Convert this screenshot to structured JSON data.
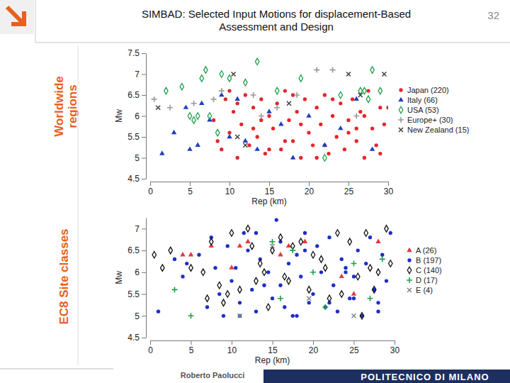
{
  "slide": {
    "title": [
      "SIMBAD: Selected Input Motions for displacement-Based",
      "Assessment and Design"
    ],
    "page_number": 32,
    "side_labels": [
      [
        "Worldwide",
        "regions"
      ],
      [
        "EC8 Site classes"
      ]
    ],
    "author": "Roberto Paolucci",
    "institution": "POLITECNICO DI MILANO"
  },
  "chart_data": [
    {
      "type": "scatter",
      "xlabel": "Rep (km)",
      "ylabel": "Mw",
      "xlim": [
        0,
        30
      ],
      "xticks": [
        0,
        5,
        10,
        15,
        20,
        25,
        30
      ],
      "ylim": [
        4.5,
        7.5
      ],
      "yticks": [
        4.5,
        5,
        5.5,
        6,
        6.5,
        7,
        7.5
      ],
      "grid": false,
      "legend": "right",
      "series": [
        {
          "name": "Japan (220)",
          "color": "#e3262d",
          "marker": "circle",
          "x": [
            8,
            9,
            9.5,
            10,
            10.5,
            11,
            11.5,
            12,
            12.5,
            13,
            13.5,
            14,
            14.5,
            15,
            15.5,
            16,
            16.5,
            17,
            17.5,
            18,
            18.5,
            19,
            19.5,
            20,
            20.5,
            21,
            21.5,
            22,
            22.5,
            23,
            23.5,
            24,
            24.5,
            25,
            25.5,
            26,
            26.5,
            27,
            27.5,
            28,
            28.5,
            29,
            29.5,
            8.5,
            11,
            13,
            15,
            17,
            19,
            21,
            23,
            25,
            27,
            29,
            10,
            14,
            18,
            22,
            26,
            30
          ],
          "values": [
            5.9,
            5.2,
            6.4,
            5.6,
            6.1,
            5.0,
            5.8,
            6.5,
            5.3,
            6.2,
            5.5,
            6.4,
            5.1,
            6.0,
            5.7,
            6.3,
            5.2,
            6.6,
            5.9,
            5.4,
            6.1,
            5.0,
            6.4,
            5.6,
            5.3,
            6.2,
            5.8,
            6.5,
            5.1,
            6.0,
            5.5,
            6.3,
            5.2,
            5.9,
            6.4,
            5.4,
            6.1,
            5.0,
            6.6,
            5.7,
            5.3,
            6.2,
            5.8,
            5.4,
            6.3,
            5.7,
            5.2,
            5.4,
            5.8,
            5.0,
            6.4,
            5.6,
            6.0,
            5.1,
            6.6,
            5.9,
            6.5,
            5.3,
            5.7,
            6.2
          ]
        },
        {
          "name": "Italy (66)",
          "color": "#1f3fbf",
          "marker": "triangle",
          "x": [
            1.5,
            3,
            4.5,
            6,
            6.5,
            7.5,
            9,
            10,
            12,
            13.5,
            15,
            16.5,
            18,
            20,
            22,
            24,
            26,
            28,
            5,
            11
          ],
          "values": [
            5.1,
            5.6,
            6.2,
            5.3,
            6.3,
            5.9,
            6.5,
            5.5,
            5.4,
            5.2,
            6.1,
            5.8,
            5.0,
            6.0,
            5.3,
            5.7,
            6.4,
            5.2,
            5.2,
            6.4
          ]
        },
        {
          "name": "USA (53)",
          "color": "#22a04a",
          "marker": "diamond",
          "x": [
            2,
            4,
            5,
            5.5,
            6,
            6.5,
            7,
            7.5,
            8.5,
            9,
            10,
            12,
            13.5,
            16,
            19,
            22,
            24,
            26.5,
            27,
            27.5,
            28,
            29
          ],
          "values": [
            6.6,
            6.7,
            6.0,
            5.9,
            6.0,
            6.9,
            7.1,
            6.0,
            5.6,
            7.0,
            6.9,
            6.8,
            7.3,
            6.6,
            6.9,
            5.0,
            6.5,
            6.6,
            6.6,
            6.4,
            7.1,
            6.6
          ]
        },
        {
          "name": "Europe+ (30)",
          "color": "#9a9a9a",
          "marker": "plus",
          "x": [
            0.5,
            2.5,
            5.5,
            8,
            9,
            13,
            14,
            16,
            18.5,
            21,
            23,
            26
          ],
          "values": [
            6.4,
            6.2,
            6.3,
            6.4,
            6.6,
            6.5,
            6.0,
            6.2,
            6.5,
            7.1,
            7.1,
            6.0
          ]
        },
        {
          "name": "New Zealand (15)",
          "color": "#444444",
          "marker": "cross",
          "x": [
            1,
            10.5,
            11,
            17.5,
            25,
            26.5,
            29.5,
            12
          ],
          "values": [
            6.2,
            7.0,
            5.5,
            6.3,
            7.0,
            6.5,
            7.0,
            5.3
          ]
        }
      ]
    },
    {
      "type": "scatter",
      "xlabel": "Rep (km)",
      "ylabel": "Mw",
      "xlim": [
        0,
        30
      ],
      "xticks": [
        0,
        5,
        10,
        15,
        20,
        25,
        30
      ],
      "ylim": [
        4.5,
        7.25
      ],
      "yticks": [
        4.5,
        5,
        5.5,
        6,
        6.5,
        7
      ],
      "grid": false,
      "legend": "right",
      "series": [
        {
          "name": "A (26)",
          "color": "#e3373a",
          "marker": "triangle",
          "x": [
            4,
            5,
            7.5,
            10,
            11,
            12,
            16,
            17,
            19,
            23.5,
            25,
            28
          ],
          "values": [
            6.4,
            6.4,
            6.6,
            6.1,
            6.6,
            6.7,
            6.4,
            6.6,
            6.7,
            5.9,
            5.5,
            6.7
          ]
        },
        {
          "name": "B (197)",
          "color": "#1c2fc8",
          "marker": "circle",
          "x": [
            1,
            4,
            4.5,
            6,
            7,
            7.5,
            8,
            8.5,
            9,
            9.5,
            10,
            10.5,
            11,
            11.5,
            12,
            12.5,
            13,
            13.5,
            14,
            14.5,
            15,
            15.5,
            16,
            16.5,
            17,
            17.5,
            18,
            18.5,
            19,
            19.5,
            20,
            20.5,
            21,
            21.5,
            22,
            22.5,
            23,
            23.5,
            24,
            24.5,
            25,
            25.5,
            26,
            26.5,
            27,
            27.5,
            28,
            28.5,
            29,
            29.5,
            3,
            11,
            13,
            16,
            19,
            22,
            25,
            28,
            18,
            24
          ],
          "values": [
            5.1,
            5.9,
            6.2,
            6.4,
            5.2,
            6.8,
            6.1,
            5.5,
            5.0,
            6.6,
            5.8,
            6.1,
            5.3,
            6.9,
            6.5,
            5.6,
            5.1,
            6.3,
            5.7,
            6.0,
            5.4,
            7.2,
            6.7,
            5.2,
            6.2,
            5.0,
            6.4,
            5.9,
            6.9,
            5.3,
            5.5,
            6.6,
            6.0,
            5.2,
            6.8,
            5.7,
            5.1,
            6.3,
            6.1,
            5.4,
            5.9,
            6.5,
            5.0,
            6.2,
            6.8,
            5.6,
            5.3,
            6.4,
            5.8,
            6.9,
            6.3,
            5.0,
            6.9,
            5.7,
            6.5,
            5.3,
            5.4,
            5.1,
            5.0,
            6.0
          ]
        },
        {
          "name": "C (140)",
          "color": "#111111",
          "marker": "diamond",
          "x": [
            0.5,
            1.5,
            2.5,
            5,
            6.5,
            7.5,
            8.5,
            9,
            10,
            11,
            12,
            13,
            13.5,
            14,
            15,
            16,
            17,
            17.5,
            18.5,
            19.5,
            20,
            21,
            22,
            23,
            23.5,
            24.5,
            25.5,
            26,
            27,
            27.5,
            28,
            29,
            29.5,
            7,
            12.5,
            16.5,
            21.5,
            26.5,
            9.5,
            14.5
          ],
          "values": [
            6.4,
            6.1,
            6.5,
            6.1,
            6.0,
            6.7,
            5.7,
            5.3,
            6.9,
            5.6,
            7.0,
            5.8,
            6.2,
            6.0,
            6.5,
            6.8,
            5.8,
            6.6,
            6.7,
            5.6,
            6.4,
            6.3,
            5.4,
            6.9,
            5.5,
            6.7,
            5.9,
            5.0,
            6.1,
            5.6,
            6.0,
            7.0,
            6.2,
            5.4,
            6.6,
            5.9,
            6.1,
            6.9,
            5.5,
            5.2
          ]
        },
        {
          "name": "D (17)",
          "color": "#22a04a",
          "marker": "plus",
          "x": [
            3,
            5,
            15,
            16,
            17.5,
            20,
            21.5,
            25,
            27,
            28.5
          ],
          "values": [
            5.6,
            5.0,
            6.7,
            5.4,
            6.5,
            6.0,
            5.2,
            6.2,
            5.4,
            6.3
          ]
        },
        {
          "name": "E (4)",
          "color": "#888888",
          "marker": "cross",
          "x": [
            11,
            15,
            19.5,
            25
          ],
          "values": [
            5.0,
            6.6,
            5.4,
            5.0
          ]
        }
      ]
    }
  ]
}
